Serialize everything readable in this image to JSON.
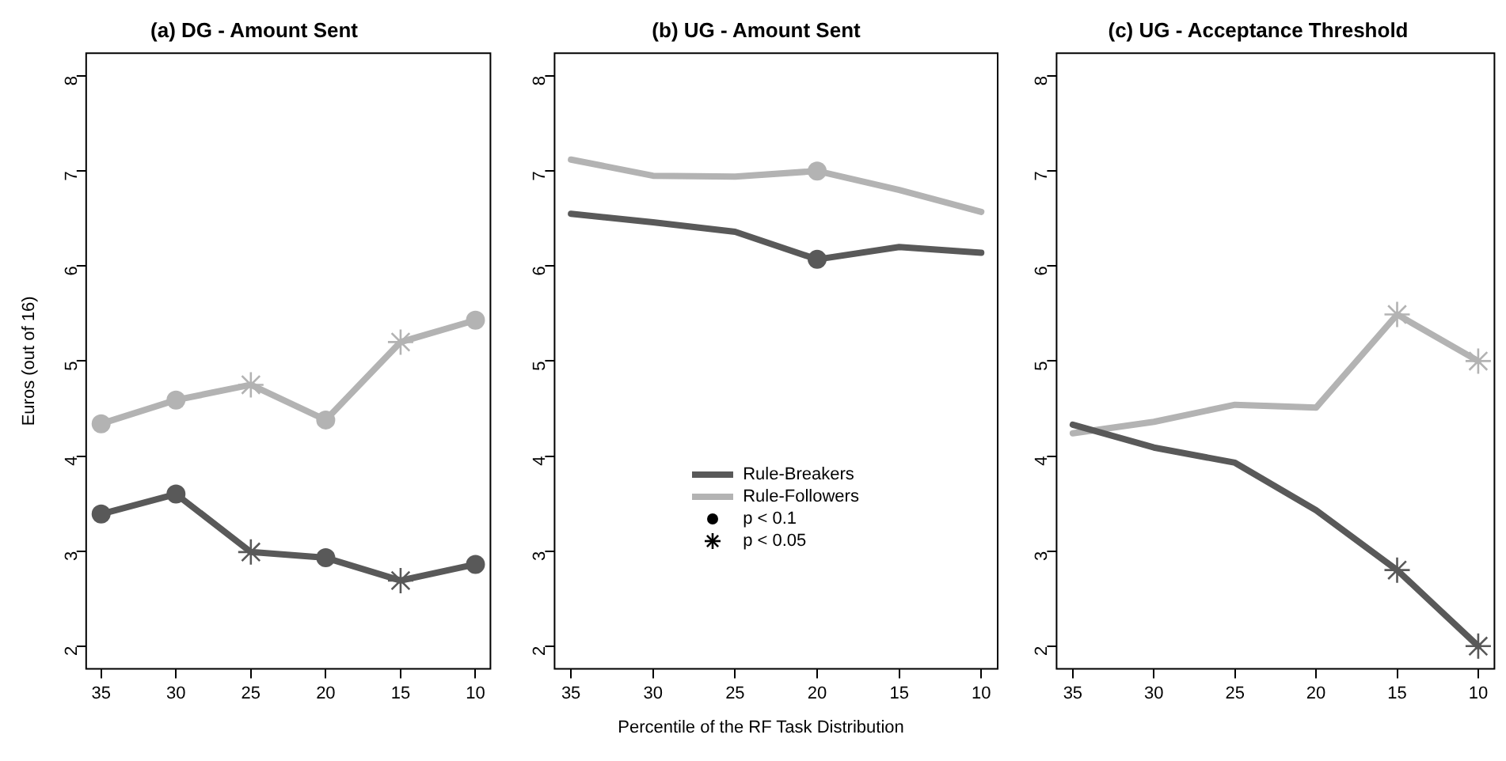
{
  "chart_data": [
    {
      "type": "line",
      "title": "(a) DG - Amount Sent",
      "ylabel": "Euros (out of 16)",
      "x": [
        35,
        30,
        25,
        20,
        15,
        10
      ],
      "xlim": [
        36,
        9
      ],
      "xticks": [
        35,
        30,
        25,
        20,
        15,
        10
      ],
      "ylim": [
        1.76,
        8.24
      ],
      "yticks": [
        2,
        3,
        4,
        5,
        6,
        7,
        8
      ],
      "legend": false,
      "marker": "none",
      "line_style": "solid",
      "series": [
        {
          "color": "#595959",
          "values": [
            3.39,
            3.6,
            2.99,
            2.93,
            2.69,
            2.86
          ]
        },
        {
          "color": "#b3b3b3",
          "values": [
            4.34,
            4.59,
            4.75,
            4.38,
            5.2,
            5.43
          ]
        },
        {
          "type": "scatter",
          "marker": "circle",
          "x": [
            35,
            30,
            20,
            10,
            35,
            30,
            20,
            10
          ],
          "values": [
            3.39,
            3.6,
            2.93,
            2.86,
            4.34,
            4.59,
            4.38,
            5.43
          ],
          "colors": [
            "#595959",
            "#595959",
            "#595959",
            "#595959",
            "#b3b3b3",
            "#b3b3b3",
            "#b3b3b3",
            "#b3b3b3"
          ]
        },
        {
          "type": "scatter",
          "marker": "cross",
          "x": [
            25,
            15,
            25,
            15
          ],
          "values": [
            2.99,
            2.69,
            4.75,
            5.2
          ],
          "colors": [
            "#595959",
            "#595959",
            "#b3b3b3",
            "#b3b3b3"
          ]
        }
      ]
    },
    {
      "type": "line",
      "title": "(b) UG - Amount Sent",
      "xlabel": "Percentile of the RF Task Distribution",
      "x": [
        35,
        30,
        25,
        20,
        15,
        10
      ],
      "xlim": [
        36,
        9
      ],
      "xticks": [
        35,
        30,
        25,
        20,
        15,
        10
      ],
      "ylim": [
        1.76,
        8.24
      ],
      "yticks": [
        2,
        3,
        4,
        5,
        6,
        7,
        8
      ],
      "legend": "bottom",
      "marker": "none",
      "line_style": "solid",
      "series": [
        {
          "name": "Rule-Breakers",
          "color": "#595959",
          "values": [
            6.55,
            6.46,
            6.36,
            6.07,
            6.2,
            6.14
          ]
        },
        {
          "name": "Rule-Followers",
          "color": "#b3b3b3",
          "values": [
            7.12,
            6.95,
            6.94,
            7.0,
            6.8,
            6.57
          ]
        },
        {
          "type": "scatter",
          "marker": "circle",
          "x": [
            20,
            20
          ],
          "values": [
            6.07,
            7.0
          ],
          "colors": [
            "#595959",
            "#b3b3b3"
          ]
        }
      ],
      "annotations": [
        "p < 0.1",
        "p < 0.05"
      ]
    },
    {
      "type": "line",
      "title": "(c) UG - Acceptance Threshold",
      "x": [
        35,
        30,
        25,
        20,
        15,
        10
      ],
      "xlim": [
        36,
        9
      ],
      "xticks": [
        35,
        30,
        25,
        20,
        15,
        10
      ],
      "ylim": [
        1.76,
        8.24
      ],
      "yticks": [
        2,
        3,
        4,
        5,
        6,
        7,
        8
      ],
      "legend": false,
      "marker": "none",
      "line_style": "solid",
      "series": [
        {
          "color": "#595959",
          "values": [
            4.33,
            4.09,
            3.93,
            3.43,
            2.8,
            2.0
          ]
        },
        {
          "color": "#b3b3b3",
          "values": [
            4.24,
            4.36,
            4.54,
            4.51,
            5.49,
            5.0
          ]
        },
        {
          "type": "scatter",
          "marker": "cross",
          "x": [
            15,
            10,
            15,
            10
          ],
          "values": [
            2.8,
            2.0,
            5.49,
            5.0
          ],
          "colors": [
            "#595959",
            "#595959",
            "#b3b3b3",
            "#b3b3b3"
          ]
        }
      ]
    }
  ]
}
